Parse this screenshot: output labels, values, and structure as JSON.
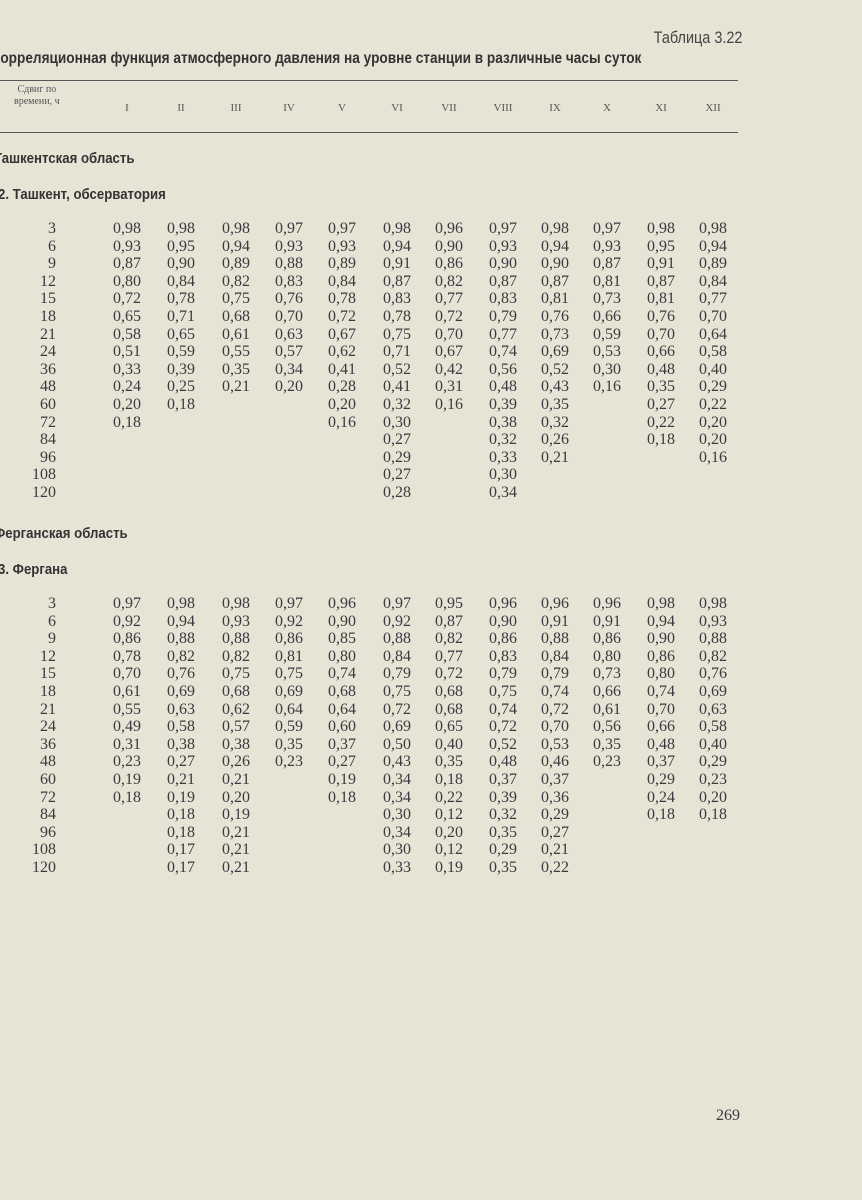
{
  "table_label": "Таблица 3.22",
  "title": "Корреляционная функция атмосферного давления на уровне станции в различные часы суток",
  "header": {
    "shift_label_line1": "Сдвиг по",
    "shift_label_line2": "времени, ч",
    "months": [
      "I",
      "II",
      "III",
      "IV",
      "V",
      "VI",
      "VII",
      "VIII",
      "IX",
      "X",
      "XI",
      "XII"
    ]
  },
  "sections": [
    {
      "region": "Ташкентская область",
      "station": "2. Ташкент, обсерватория",
      "rows": [
        {
          "shift": "3",
          "values": [
            "0,98",
            "0,98",
            "0,98",
            "0,97",
            "0,97",
            "0,98",
            "0,96",
            "0,97",
            "0,98",
            "0,97",
            "0,98",
            "0,98"
          ]
        },
        {
          "shift": "6",
          "values": [
            "0,93",
            "0,95",
            "0,94",
            "0,93",
            "0,93",
            "0,94",
            "0,90",
            "0,93",
            "0,94",
            "0,93",
            "0,95",
            "0,94"
          ]
        },
        {
          "shift": "9",
          "values": [
            "0,87",
            "0,90",
            "0,89",
            "0,88",
            "0,89",
            "0,91",
            "0,86",
            "0,90",
            "0,90",
            "0,87",
            "0,91",
            "0,89"
          ]
        },
        {
          "shift": "12",
          "values": [
            "0,80",
            "0,84",
            "0,82",
            "0,83",
            "0,84",
            "0,87",
            "0,82",
            "0,87",
            "0,87",
            "0,81",
            "0,87",
            "0,84"
          ]
        },
        {
          "shift": "15",
          "values": [
            "0,72",
            "0,78",
            "0,75",
            "0,76",
            "0,78",
            "0,83",
            "0,77",
            "0,83",
            "0,81",
            "0,73",
            "0,81",
            "0,77"
          ]
        },
        {
          "shift": "18",
          "values": [
            "0,65",
            "0,71",
            "0,68",
            "0,70",
            "0,72",
            "0,78",
            "0,72",
            "0,79",
            "0,76",
            "0,66",
            "0,76",
            "0,70"
          ]
        },
        {
          "shift": "21",
          "values": [
            "0,58",
            "0,65",
            "0,61",
            "0,63",
            "0,67",
            "0,75",
            "0,70",
            "0,77",
            "0,73",
            "0,59",
            "0,70",
            "0,64"
          ]
        },
        {
          "shift": "24",
          "values": [
            "0,51",
            "0,59",
            "0,55",
            "0,57",
            "0,62",
            "0,71",
            "0,67",
            "0,74",
            "0,69",
            "0,53",
            "0,66",
            "0,58"
          ]
        },
        {
          "shift": "36",
          "values": [
            "0,33",
            "0,39",
            "0,35",
            "0,34",
            "0,41",
            "0,52",
            "0,42",
            "0,56",
            "0,52",
            "0,30",
            "0,48",
            "0,40"
          ]
        },
        {
          "shift": "48",
          "values": [
            "0,24",
            "0,25",
            "0,21",
            "0,20",
            "0,28",
            "0,41",
            "0,31",
            "0,48",
            "0,43",
            "0,16",
            "0,35",
            "0,29"
          ]
        },
        {
          "shift": "60",
          "values": [
            "0,20",
            "0,18",
            null,
            null,
            "0,20",
            "0,32",
            "0,16",
            "0,39",
            "0,35",
            null,
            "0,27",
            "0,22"
          ]
        },
        {
          "shift": "72",
          "values": [
            "0,18",
            null,
            null,
            null,
            "0,16",
            "0,30",
            null,
            "0,38",
            "0,32",
            null,
            "0,22",
            "0,20"
          ]
        },
        {
          "shift": "84",
          "values": [
            null,
            null,
            null,
            null,
            null,
            "0,27",
            null,
            "0,32",
            "0,26",
            null,
            "0,18",
            "0,20"
          ]
        },
        {
          "shift": "96",
          "values": [
            null,
            null,
            null,
            null,
            null,
            "0,29",
            null,
            "0,33",
            "0,21",
            null,
            null,
            "0,16"
          ]
        },
        {
          "shift": "108",
          "values": [
            null,
            null,
            null,
            null,
            null,
            "0,27",
            null,
            "0,30",
            null,
            null,
            null,
            null
          ]
        },
        {
          "shift": "120",
          "values": [
            null,
            null,
            null,
            null,
            null,
            "0,28",
            null,
            "0,34",
            null,
            null,
            null,
            null
          ]
        }
      ]
    },
    {
      "region": "Ферганская область",
      "station": "3. Фергана",
      "rows": [
        {
          "shift": "3",
          "values": [
            "0,97",
            "0,98",
            "0,98",
            "0,97",
            "0,96",
            "0,97",
            "0,95",
            "0,96",
            "0,96",
            "0,96",
            "0,98",
            "0,98"
          ]
        },
        {
          "shift": "6",
          "values": [
            "0,92",
            "0,94",
            "0,93",
            "0,92",
            "0,90",
            "0,92",
            "0,87",
            "0,90",
            "0,91",
            "0,91",
            "0,94",
            "0,93"
          ]
        },
        {
          "shift": "9",
          "values": [
            "0,86",
            "0,88",
            "0,88",
            "0,86",
            "0,85",
            "0,88",
            "0,82",
            "0,86",
            "0,88",
            "0,86",
            "0,90",
            "0,88"
          ]
        },
        {
          "shift": "12",
          "values": [
            "0,78",
            "0,82",
            "0,82",
            "0,81",
            "0,80",
            "0,84",
            "0,77",
            "0,83",
            "0,84",
            "0,80",
            "0,86",
            "0,82"
          ]
        },
        {
          "shift": "15",
          "values": [
            "0,70",
            "0,76",
            "0,75",
            "0,75",
            "0,74",
            "0,79",
            "0,72",
            "0,79",
            "0,79",
            "0,73",
            "0,80",
            "0,76"
          ]
        },
        {
          "shift": "18",
          "values": [
            "0,61",
            "0,69",
            "0,68",
            "0,69",
            "0,68",
            "0,75",
            "0,68",
            "0,75",
            "0,74",
            "0,66",
            "0,74",
            "0,69"
          ]
        },
        {
          "shift": "21",
          "values": [
            "0,55",
            "0,63",
            "0,62",
            "0,64",
            "0,64",
            "0,72",
            "0,68",
            "0,74",
            "0,72",
            "0,61",
            "0,70",
            "0,63"
          ]
        },
        {
          "shift": "24",
          "values": [
            "0,49",
            "0,58",
            "0,57",
            "0,59",
            "0,60",
            "0,69",
            "0,65",
            "0,72",
            "0,70",
            "0,56",
            "0,66",
            "0,58"
          ]
        },
        {
          "shift": "36",
          "values": [
            "0,31",
            "0,38",
            "0,38",
            "0,35",
            "0,37",
            "0,50",
            "0,40",
            "0,52",
            "0,53",
            "0,35",
            "0,48",
            "0,40"
          ]
        },
        {
          "shift": "48",
          "values": [
            "0,23",
            "0,27",
            "0,26",
            "0,23",
            "0,27",
            "0,43",
            "0,35",
            "0,48",
            "0,46",
            "0,23",
            "0,37",
            "0,29"
          ]
        },
        {
          "shift": "60",
          "values": [
            "0,19",
            "0,21",
            "0,21",
            null,
            "0,19",
            "0,34",
            "0,18",
            "0,37",
            "0,37",
            null,
            "0,29",
            "0,23"
          ]
        },
        {
          "shift": "72",
          "values": [
            "0,18",
            "0,19",
            "0,20",
            null,
            "0,18",
            "0,34",
            "0,22",
            "0,39",
            "0,36",
            null,
            "0,24",
            "0,20"
          ]
        },
        {
          "shift": "84",
          "values": [
            null,
            "0,18",
            "0,19",
            null,
            null,
            "0,30",
            "0,12",
            "0,32",
            "0,29",
            null,
            "0,18",
            "0,18"
          ]
        },
        {
          "shift": "96",
          "values": [
            null,
            "0,18",
            "0,21",
            null,
            null,
            "0,34",
            "0,20",
            "0,35",
            "0,27",
            null,
            null,
            null
          ]
        },
        {
          "shift": "108",
          "values": [
            null,
            "0,17",
            "0,21",
            null,
            null,
            "0,30",
            "0,12",
            "0,29",
            "0,21",
            null,
            null,
            null
          ]
        },
        {
          "shift": "120",
          "values": [
            null,
            "0,17",
            "0,21",
            null,
            null,
            "0,33",
            "0,19",
            "0,35",
            "0,22",
            null,
            null,
            null
          ]
        }
      ]
    }
  ],
  "page_number": "269"
}
